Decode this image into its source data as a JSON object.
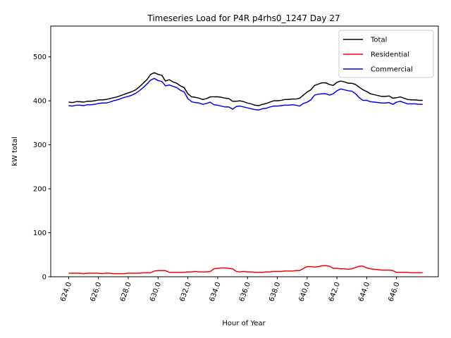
{
  "chart_data": {
    "type": "line",
    "title": "Timeseries Load for P4R p4rhs0_1247  Day 27",
    "xlabel": "Hour of Year",
    "ylabel": "kW total",
    "xlim": [
      622.8,
      648.8
    ],
    "ylim": [
      0,
      570
    ],
    "legend_position": "top-right",
    "grid": false,
    "x_ticks": [
      624,
      626,
      628,
      630,
      632,
      634,
      636,
      638,
      640,
      642,
      644,
      646
    ],
    "x_tick_labels": [
      "624.0",
      "626.0",
      "628.0",
      "630.0",
      "632.0",
      "634.0",
      "636.0",
      "638.0",
      "640.0",
      "642.0",
      "644.0",
      "646.0"
    ],
    "y_ticks": [
      0,
      100,
      200,
      300,
      400,
      500
    ],
    "y_tick_labels": [
      "0",
      "100",
      "200",
      "300",
      "400",
      "500"
    ],
    "x": [
      624.0,
      624.25,
      624.5,
      624.75,
      625.0,
      625.25,
      625.5,
      625.75,
      626.0,
      626.25,
      626.5,
      626.75,
      627.0,
      627.25,
      627.5,
      627.75,
      628.0,
      628.25,
      628.5,
      628.75,
      629.0,
      629.25,
      629.5,
      629.75,
      630.0,
      630.25,
      630.5,
      630.75,
      631.0,
      631.25,
      631.5,
      631.75,
      632.0,
      632.25,
      632.5,
      632.75,
      633.0,
      633.25,
      633.5,
      633.75,
      634.0,
      634.25,
      634.5,
      634.75,
      635.0,
      635.25,
      635.5,
      635.75,
      636.0,
      636.25,
      636.5,
      636.75,
      637.0,
      637.25,
      637.5,
      637.75,
      638.0,
      638.25,
      638.5,
      638.75,
      639.0,
      639.25,
      639.5,
      639.75,
      640.0,
      640.25,
      640.5,
      640.75,
      641.0,
      641.25,
      641.5,
      641.75,
      642.0,
      642.25,
      642.5,
      642.75,
      643.0,
      643.25,
      643.5,
      643.75,
      644.0,
      644.25,
      644.5,
      644.75,
      645.0,
      645.25,
      645.5,
      645.75,
      646.0,
      646.25,
      646.5,
      646.75,
      647.0,
      647.25,
      647.5,
      647.75
    ],
    "series": [
      {
        "name": "Total",
        "color": "#000000",
        "values": [
          397,
          396,
          398,
          398,
          397,
          399,
          399,
          400,
          402,
          402,
          403,
          405,
          407,
          409,
          412,
          415,
          418,
          421,
          425,
          432,
          440,
          448,
          460,
          464,
          460,
          458,
          445,
          448,
          443,
          440,
          434,
          430,
          416,
          409,
          408,
          406,
          403,
          405,
          409,
          409,
          409,
          408,
          406,
          405,
          399,
          399,
          400,
          398,
          395,
          393,
          390,
          389,
          392,
          394,
          397,
          400,
          400,
          401,
          403,
          403,
          404,
          404,
          406,
          413,
          420,
          425,
          435,
          438,
          441,
          441,
          437,
          435,
          442,
          445,
          443,
          440,
          440,
          437,
          431,
          425,
          421,
          416,
          414,
          412,
          410,
          410,
          411,
          406,
          407,
          409,
          406,
          403,
          402,
          402,
          401,
          401
        ]
      },
      {
        "name": "Residential",
        "color": "#ff0000",
        "values": [
          8,
          8,
          8,
          8,
          7,
          8,
          8,
          8,
          8,
          7,
          8,
          8,
          7,
          7,
          7,
          7,
          8,
          8,
          8,
          8,
          9,
          9,
          9,
          13,
          14,
          14,
          14,
          10,
          10,
          10,
          10,
          10,
          11,
          11,
          12,
          11,
          11,
          11,
          12,
          18,
          19,
          20,
          20,
          19,
          18,
          12,
          11,
          12,
          11,
          11,
          10,
          10,
          10,
          11,
          11,
          12,
          12,
          12,
          13,
          13,
          13,
          14,
          14,
          19,
          23,
          23,
          22,
          23,
          25,
          25,
          24,
          19,
          19,
          18,
          18,
          17,
          18,
          21,
          24,
          24,
          20,
          18,
          17,
          16,
          15,
          15,
          15,
          14,
          10,
          10,
          10,
          10,
          9,
          9,
          9,
          9
        ]
      },
      {
        "name": "Commercial",
        "color": "#0000ff",
        "values": [
          389,
          388,
          390,
          390,
          389,
          391,
          391,
          392,
          394,
          395,
          395,
          397,
          400,
          402,
          405,
          408,
          410,
          413,
          417,
          423,
          430,
          438,
          447,
          451,
          446,
          444,
          434,
          436,
          433,
          430,
          424,
          420,
          405,
          398,
          396,
          395,
          392,
          394,
          397,
          391,
          390,
          388,
          386,
          386,
          381,
          387,
          388,
          386,
          384,
          382,
          380,
          379,
          382,
          383,
          386,
          388,
          388,
          389,
          390,
          390,
          391,
          390,
          388,
          394,
          397,
          402,
          413,
          415,
          416,
          416,
          413,
          416,
          423,
          427,
          425,
          423,
          422,
          416,
          407,
          401,
          401,
          398,
          397,
          396,
          395,
          395,
          396,
          392,
          397,
          399,
          396,
          393,
          393,
          393,
          392,
          392
        ]
      }
    ]
  }
}
